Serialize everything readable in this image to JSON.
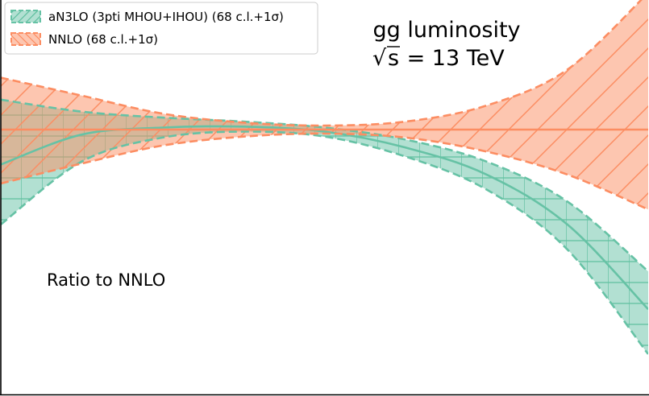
{
  "chart_data": {
    "type": "area",
    "title": "gg luminosity",
    "subtitle_sqrt_symbol": "√",
    "subtitle_sqrt_arg": "s",
    "subtitle_rest": " = 13 TeV",
    "annotation": "Ratio to NNLO",
    "xlabel": "",
    "ylabel": "",
    "grid": false,
    "legend_position": "top-left",
    "x": [
      0,
      0.125,
      0.25,
      0.375,
      0.5,
      0.625,
      0.75,
      0.875,
      1.0
    ],
    "series": [
      {
        "name": "aN3LO (3pti MHOU+IHOU) (68 c.l.+1σ)",
        "color": "#66c2a5",
        "central": [
          0.965,
          0.995,
          1.002,
          1.003,
          0.998,
          0.982,
          0.955,
          0.905,
          0.82
        ],
        "upper": [
          1.03,
          1.018,
          1.012,
          1.008,
          1.002,
          0.99,
          0.968,
          0.928,
          0.858
        ],
        "lower": [
          0.905,
          0.968,
          0.992,
          0.998,
          0.993,
          0.973,
          0.94,
          0.88,
          0.775
        ]
      },
      {
        "name": "NNLO (68 c.l.+1σ)",
        "color": "#fc8d62",
        "central": [
          1.0,
          1.0,
          1.0,
          1.0,
          1.0,
          1.0,
          1.0,
          1.0,
          1.0
        ],
        "upper": [
          1.052,
          1.034,
          1.016,
          1.007,
          1.004,
          1.008,
          1.024,
          1.06,
          1.137
        ],
        "lower": [
          0.946,
          0.966,
          0.984,
          0.993,
          0.996,
          0.992,
          0.978,
          0.955,
          0.92
        ]
      }
    ]
  }
}
